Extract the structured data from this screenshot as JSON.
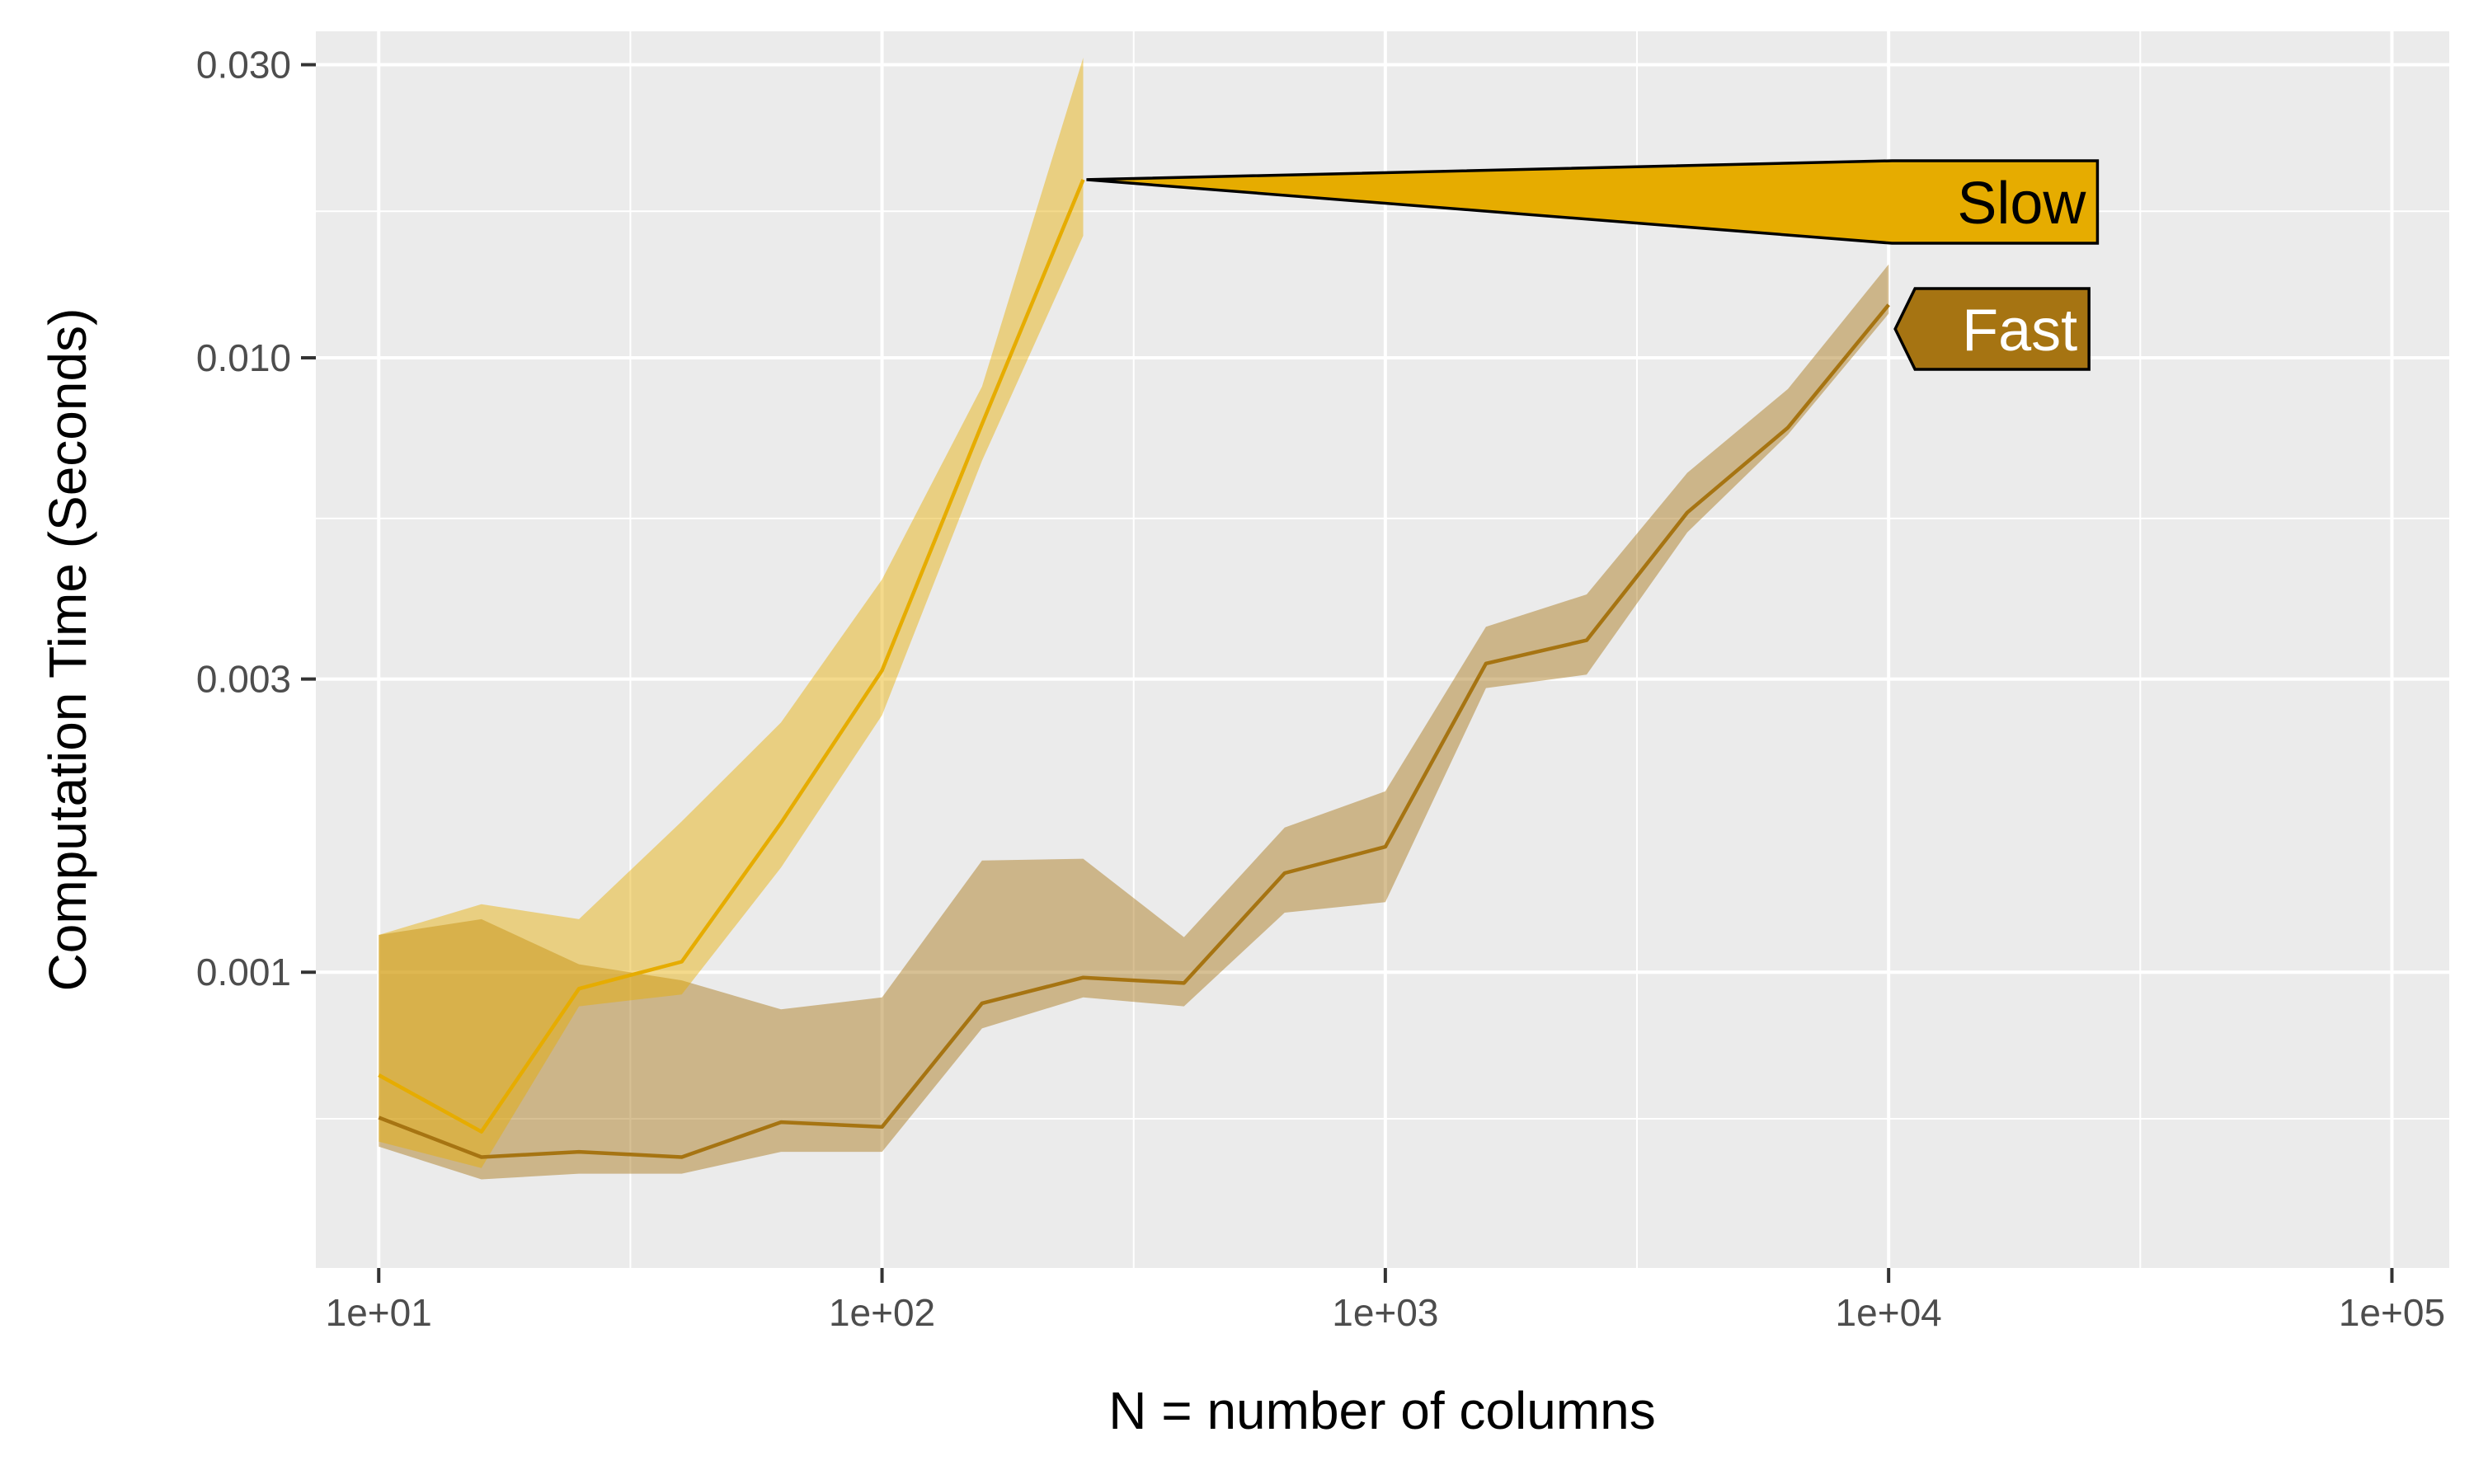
{
  "chart_data": {
    "type": "line",
    "xlabel": "N = number of columns",
    "ylabel": "Computation Time (Seconds)",
    "x_scale": "log10",
    "y_scale": "log10",
    "xlim": [
      7.5,
      130000
    ],
    "ylim": [
      0.00033,
      0.034
    ],
    "x_ticks": [
      10,
      100,
      1000,
      10000,
      100000
    ],
    "x_tick_labels": [
      "1e+01",
      "1e+02",
      "1e+03",
      "1e+04",
      "1e+05"
    ],
    "y_ticks": [
      0.001,
      0.003,
      0.01,
      0.03
    ],
    "y_tick_labels": [
      "0.001",
      "0.003",
      "0.010",
      "0.030"
    ],
    "grid": true,
    "legend": "none",
    "series": [
      {
        "name": "Slow",
        "color": "#E6AC00",
        "x": [
          10,
          16,
          25,
          40,
          63,
          100,
          158,
          251
        ],
        "y": [
          0.00068,
          0.00055,
          0.00094,
          0.00104,
          0.00175,
          0.0031,
          0.0078,
          0.0195
        ],
        "lower": [
          0.00053,
          0.00048,
          0.00088,
          0.00092,
          0.00148,
          0.00262,
          0.0068,
          0.0158
        ],
        "upper": [
          0.00115,
          0.00129,
          0.00122,
          0.00176,
          0.00255,
          0.00436,
          0.00898,
          0.0308
        ]
      },
      {
        "name": "Fast",
        "color": "#A67412",
        "x": [
          10,
          16,
          25,
          40,
          63,
          100,
          158,
          251,
          398,
          631,
          1000,
          1585,
          2512,
          3981,
          6310,
          10000
        ],
        "y": [
          0.00058,
          0.0005,
          0.00051,
          0.0005,
          0.00057,
          0.00056,
          0.00089,
          0.00098,
          0.00096,
          0.00145,
          0.0016,
          0.00318,
          0.00347,
          0.0056,
          0.0077,
          0.0122
        ],
        "lower": [
          0.00052,
          0.00046,
          0.00047,
          0.00047,
          0.00051,
          0.00051,
          0.00081,
          0.00091,
          0.00088,
          0.00125,
          0.0013,
          0.0029,
          0.00305,
          0.0052,
          0.0075,
          0.0118
        ],
        "upper": [
          0.00115,
          0.00122,
          0.00103,
          0.00097,
          0.00087,
          0.00091,
          0.00152,
          0.00153,
          0.00114,
          0.00172,
          0.00197,
          0.00365,
          0.00412,
          0.0065,
          0.0089,
          0.0142
        ]
      }
    ],
    "annotations": [
      {
        "series": "Slow",
        "text": "Slow",
        "fill": "#E6AC00",
        "text_color": "#000000"
      },
      {
        "series": "Fast",
        "text": "Fast",
        "fill": "#A67412",
        "text_color": "#ffffff"
      }
    ]
  }
}
